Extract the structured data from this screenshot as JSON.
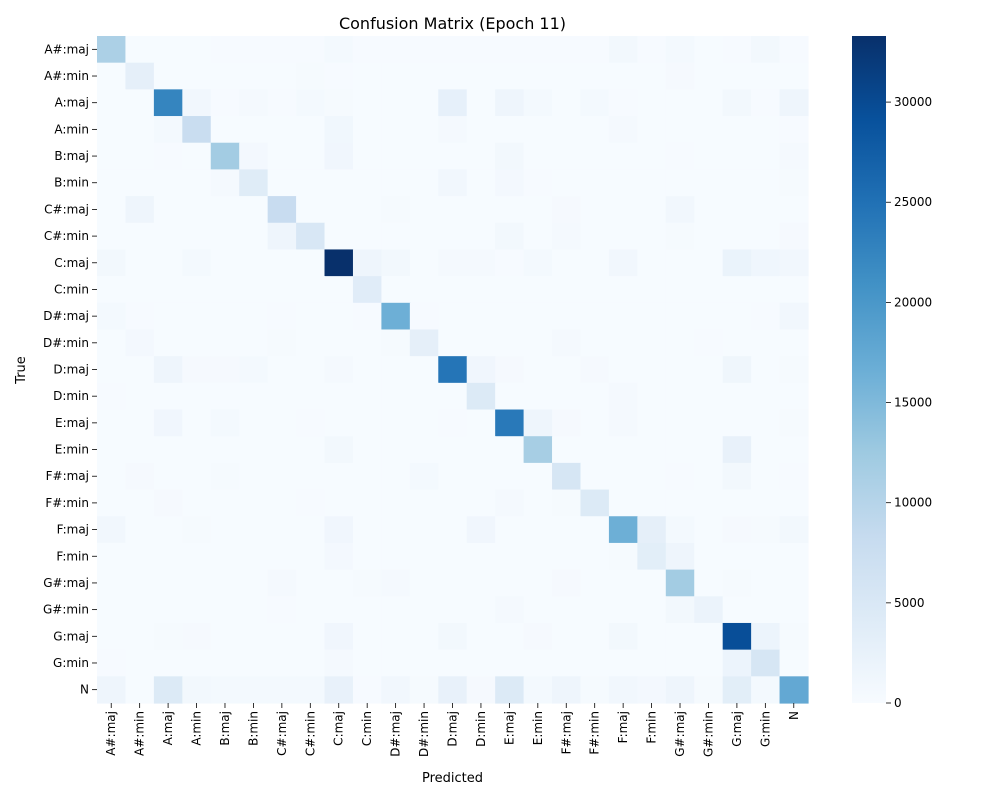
{
  "chart_data": {
    "type": "heatmap",
    "title": "Confusion Matrix (Epoch 11)",
    "xlabel": "Predicted",
    "ylabel": "True",
    "colormap": "Blues",
    "labels": [
      "A#:maj",
      "A#:min",
      "A:maj",
      "A:min",
      "B:maj",
      "B:min",
      "C#:maj",
      "C#:min",
      "C:maj",
      "C:min",
      "D#:maj",
      "D#:min",
      "D:maj",
      "D:min",
      "E:maj",
      "E:min",
      "F#:maj",
      "F#:min",
      "F:maj",
      "F:min",
      "G#:maj",
      "G#:min",
      "G:maj",
      "G:min",
      "N"
    ],
    "vmin": 0,
    "vmax": 33300,
    "colorbar_ticks": [
      "0",
      "5000",
      "10000",
      "15000",
      "20000",
      "25000",
      "30000"
    ],
    "values": [
      [
        11000,
        100,
        100,
        100,
        200,
        200,
        200,
        200,
        600,
        200,
        200,
        200,
        200,
        200,
        200,
        200,
        200,
        200,
        800,
        200,
        600,
        100,
        200,
        900,
        200
      ],
      [
        100,
        3000,
        100,
        100,
        100,
        100,
        100,
        300,
        200,
        100,
        100,
        100,
        100,
        100,
        100,
        100,
        100,
        100,
        100,
        100,
        400,
        100,
        100,
        100,
        100
      ],
      [
        100,
        100,
        22500,
        1000,
        200,
        500,
        200,
        600,
        300,
        100,
        100,
        100,
        2800,
        100,
        1500,
        600,
        100,
        600,
        200,
        100,
        100,
        100,
        800,
        200,
        1500
      ],
      [
        100,
        100,
        600,
        7800,
        100,
        100,
        100,
        100,
        1100,
        100,
        100,
        100,
        500,
        100,
        100,
        100,
        100,
        100,
        500,
        100,
        100,
        100,
        100,
        100,
        200
      ],
      [
        100,
        100,
        200,
        100,
        12000,
        700,
        100,
        100,
        1200,
        100,
        100,
        100,
        100,
        100,
        800,
        100,
        100,
        100,
        100,
        100,
        200,
        100,
        100,
        100,
        500
      ],
      [
        100,
        100,
        100,
        100,
        500,
        4000,
        100,
        100,
        100,
        100,
        100,
        100,
        1000,
        100,
        700,
        200,
        100,
        100,
        100,
        100,
        100,
        100,
        100,
        100,
        300
      ],
      [
        100,
        1500,
        100,
        100,
        100,
        100,
        8000,
        100,
        100,
        100,
        300,
        100,
        100,
        100,
        100,
        100,
        400,
        100,
        100,
        100,
        1000,
        100,
        100,
        100,
        100
      ],
      [
        100,
        100,
        100,
        100,
        100,
        100,
        1500,
        5200,
        100,
        100,
        100,
        100,
        100,
        100,
        900,
        100,
        500,
        100,
        100,
        100,
        300,
        100,
        100,
        100,
        400
      ],
      [
        800,
        100,
        100,
        600,
        100,
        100,
        100,
        100,
        33300,
        1500,
        900,
        100,
        500,
        500,
        200,
        600,
        100,
        100,
        1000,
        100,
        100,
        100,
        2200,
        1300,
        1000
      ],
      [
        100,
        100,
        100,
        100,
        100,
        100,
        100,
        100,
        100,
        3800,
        100,
        100,
        100,
        100,
        100,
        100,
        100,
        100,
        100,
        100,
        100,
        100,
        100,
        100,
        100
      ],
      [
        600,
        200,
        100,
        100,
        100,
        100,
        200,
        100,
        100,
        200,
        16500,
        200,
        100,
        100,
        100,
        100,
        100,
        100,
        100,
        100,
        100,
        100,
        100,
        200,
        1000
      ],
      [
        100,
        700,
        100,
        100,
        100,
        100,
        300,
        100,
        100,
        100,
        300,
        3000,
        100,
        100,
        100,
        100,
        500,
        100,
        100,
        100,
        100,
        200,
        100,
        100,
        100
      ],
      [
        100,
        100,
        1500,
        400,
        400,
        600,
        100,
        100,
        500,
        100,
        100,
        100,
        24500,
        1200,
        400,
        100,
        100,
        400,
        100,
        100,
        100,
        100,
        1400,
        100,
        300
      ],
      [
        200,
        100,
        100,
        100,
        100,
        100,
        100,
        100,
        100,
        100,
        100,
        100,
        100,
        4500,
        100,
        100,
        100,
        100,
        500,
        100,
        100,
        100,
        100,
        100,
        100
      ],
      [
        100,
        100,
        1200,
        100,
        600,
        100,
        100,
        200,
        100,
        100,
        100,
        100,
        200,
        100,
        24000,
        1500,
        400,
        100,
        500,
        100,
        100,
        100,
        100,
        100,
        300
      ],
      [
        100,
        100,
        100,
        100,
        100,
        100,
        100,
        100,
        800,
        100,
        100,
        100,
        100,
        100,
        100,
        11500,
        100,
        100,
        100,
        100,
        100,
        100,
        2500,
        100,
        100
      ],
      [
        100,
        400,
        100,
        100,
        300,
        100,
        100,
        100,
        100,
        100,
        100,
        600,
        100,
        100,
        100,
        100,
        5500,
        100,
        100,
        100,
        200,
        100,
        800,
        100,
        200
      ],
      [
        100,
        100,
        400,
        100,
        100,
        100,
        100,
        200,
        100,
        100,
        100,
        100,
        100,
        100,
        500,
        100,
        300,
        4500,
        100,
        100,
        100,
        100,
        100,
        100,
        100
      ],
      [
        1000,
        100,
        100,
        300,
        100,
        100,
        100,
        100,
        1200,
        100,
        100,
        100,
        100,
        1200,
        100,
        100,
        100,
        100,
        16500,
        3000,
        600,
        100,
        400,
        300,
        800
      ],
      [
        100,
        100,
        100,
        100,
        100,
        100,
        100,
        100,
        700,
        100,
        100,
        100,
        100,
        100,
        100,
        100,
        100,
        100,
        300,
        3500,
        1500,
        100,
        100,
        100,
        100
      ],
      [
        100,
        100,
        100,
        100,
        100,
        100,
        500,
        100,
        100,
        300,
        500,
        100,
        100,
        100,
        100,
        100,
        400,
        100,
        100,
        100,
        12000,
        100,
        300,
        100,
        100
      ],
      [
        100,
        100,
        100,
        100,
        100,
        100,
        200,
        100,
        100,
        100,
        100,
        100,
        100,
        100,
        500,
        100,
        100,
        100,
        100,
        100,
        800,
        2000,
        100,
        100,
        100
      ],
      [
        100,
        100,
        300,
        400,
        100,
        100,
        100,
        100,
        1200,
        100,
        100,
        100,
        800,
        100,
        100,
        400,
        100,
        100,
        800,
        100,
        100,
        100,
        29500,
        1800,
        300
      ],
      [
        200,
        100,
        100,
        100,
        100,
        100,
        100,
        100,
        500,
        100,
        100,
        100,
        100,
        100,
        100,
        100,
        100,
        100,
        100,
        100,
        100,
        100,
        1800,
        5500,
        100
      ],
      [
        1500,
        100,
        4500,
        800,
        600,
        600,
        600,
        600,
        2500,
        200,
        1000,
        300,
        2500,
        400,
        4500,
        600,
        1500,
        300,
        1000,
        700,
        1500,
        300,
        3500,
        600,
        17500
      ]
    ]
  }
}
